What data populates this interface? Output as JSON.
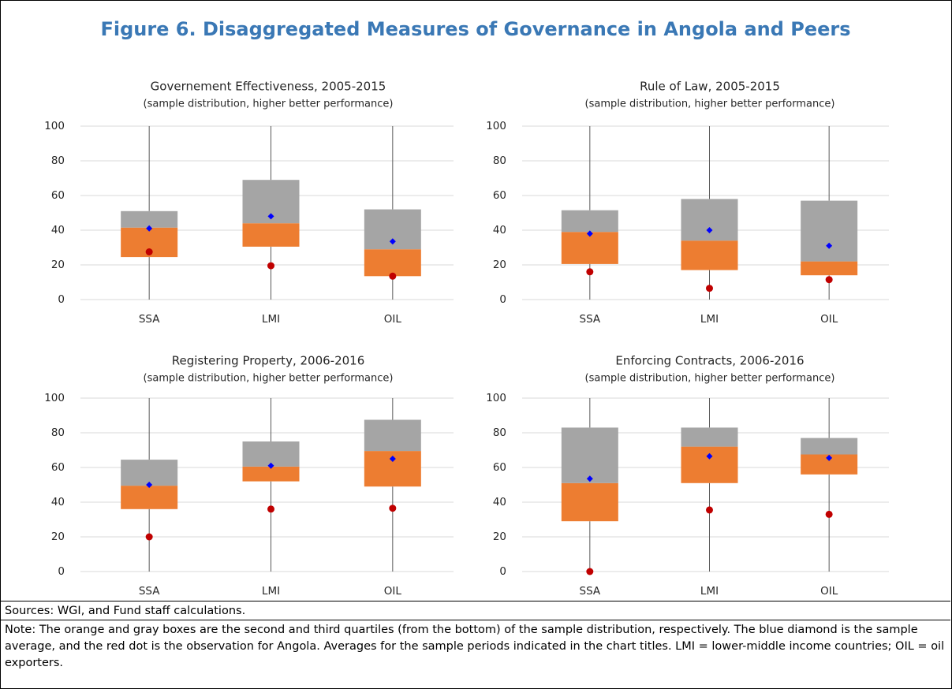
{
  "figure": {
    "title": "Figure 6. Disaggregated Measures of Governance in Angola and Peers",
    "sources": "Sources: WGI, and Fund staff calculations.",
    "note": "Note: The orange and gray boxes are the second and third quartiles (from the bottom) of the sample distribution, respectively. The blue diamond is the sample average, and the red dot is the observation for Angola. Averages for the sample periods indicated in the chart titles. LMI = lower-middle income countries; OIL = oil exporters."
  },
  "chart_data": [
    {
      "type": "box",
      "title": "Governement Effectiveness, 2005-2015",
      "subtitle": "(sample distribution, higher better performance)",
      "categories": [
        "SSA",
        "LMI",
        "OIL"
      ],
      "min": [
        0,
        0,
        0
      ],
      "q1": [
        24.5,
        30.5,
        13.5
      ],
      "median": [
        41.5,
        44,
        29
      ],
      "q3": [
        51,
        69,
        52
      ],
      "max": [
        100,
        100,
        100
      ],
      "mean": [
        41,
        48,
        33.5
      ],
      "angola": [
        27.5,
        19.5,
        13.5
      ],
      "ylim": [
        0,
        100
      ],
      "yticks": [
        0,
        20,
        40,
        60,
        80,
        100
      ],
      "grid": true,
      "lower_box_color": "#ed7d31",
      "upper_box_color": "#a5a5a5",
      "mean_color": "#0000ff",
      "angola_color": "#c00000"
    },
    {
      "type": "box",
      "title": "Rule of Law, 2005-2015",
      "subtitle": "(sample distribution, higher better performance)",
      "categories": [
        "SSA",
        "LMI",
        "OIL"
      ],
      "min": [
        0,
        0,
        0
      ],
      "q1": [
        20.5,
        17,
        14
      ],
      "median": [
        39,
        34,
        22
      ],
      "q3": [
        51.5,
        58,
        57
      ],
      "max": [
        100,
        100,
        100
      ],
      "mean": [
        38,
        40,
        31
      ],
      "angola": [
        16,
        6.5,
        11.5
      ],
      "ylim": [
        0,
        100
      ],
      "yticks": [
        0,
        20,
        40,
        60,
        80,
        100
      ],
      "grid": true,
      "lower_box_color": "#ed7d31",
      "upper_box_color": "#a5a5a5",
      "mean_color": "#0000ff",
      "angola_color": "#c00000"
    },
    {
      "type": "box",
      "title": "Registering Property, 2006-2016",
      "subtitle": "(sample distribution, higher better performance)",
      "categories": [
        "SSA",
        "LMI",
        "OIL"
      ],
      "min": [
        0,
        0,
        0
      ],
      "q1": [
        36,
        52,
        49
      ],
      "median": [
        49.5,
        60.5,
        69.5
      ],
      "q3": [
        64.5,
        75,
        87.5
      ],
      "max": [
        100,
        100,
        100
      ],
      "mean": [
        50,
        61,
        65
      ],
      "angola": [
        20,
        36,
        36.5
      ],
      "ylim": [
        0,
        100
      ],
      "yticks": [
        0,
        20,
        40,
        60,
        80,
        100
      ],
      "grid": true,
      "lower_box_color": "#ed7d31",
      "upper_box_color": "#a5a5a5",
      "mean_color": "#0000ff",
      "angola_color": "#c00000"
    },
    {
      "type": "box",
      "title": "Enforcing Contracts, 2006-2016",
      "subtitle": "(sample distribution, higher better performance)",
      "categories": [
        "SSA",
        "LMI",
        "OIL"
      ],
      "min": [
        0,
        0,
        0
      ],
      "q1": [
        29,
        51,
        56
      ],
      "median": [
        51,
        72,
        67.5
      ],
      "q3": [
        83,
        83,
        77
      ],
      "max": [
        100,
        100,
        100
      ],
      "mean": [
        53.5,
        66.5,
        65.5
      ],
      "angola": [
        0,
        35.5,
        33
      ],
      "ylim": [
        0,
        100
      ],
      "yticks": [
        0,
        20,
        40,
        60,
        80,
        100
      ],
      "grid": true,
      "lower_box_color": "#ed7d31",
      "upper_box_color": "#a5a5a5",
      "mean_color": "#0000ff",
      "angola_color": "#c00000"
    }
  ]
}
